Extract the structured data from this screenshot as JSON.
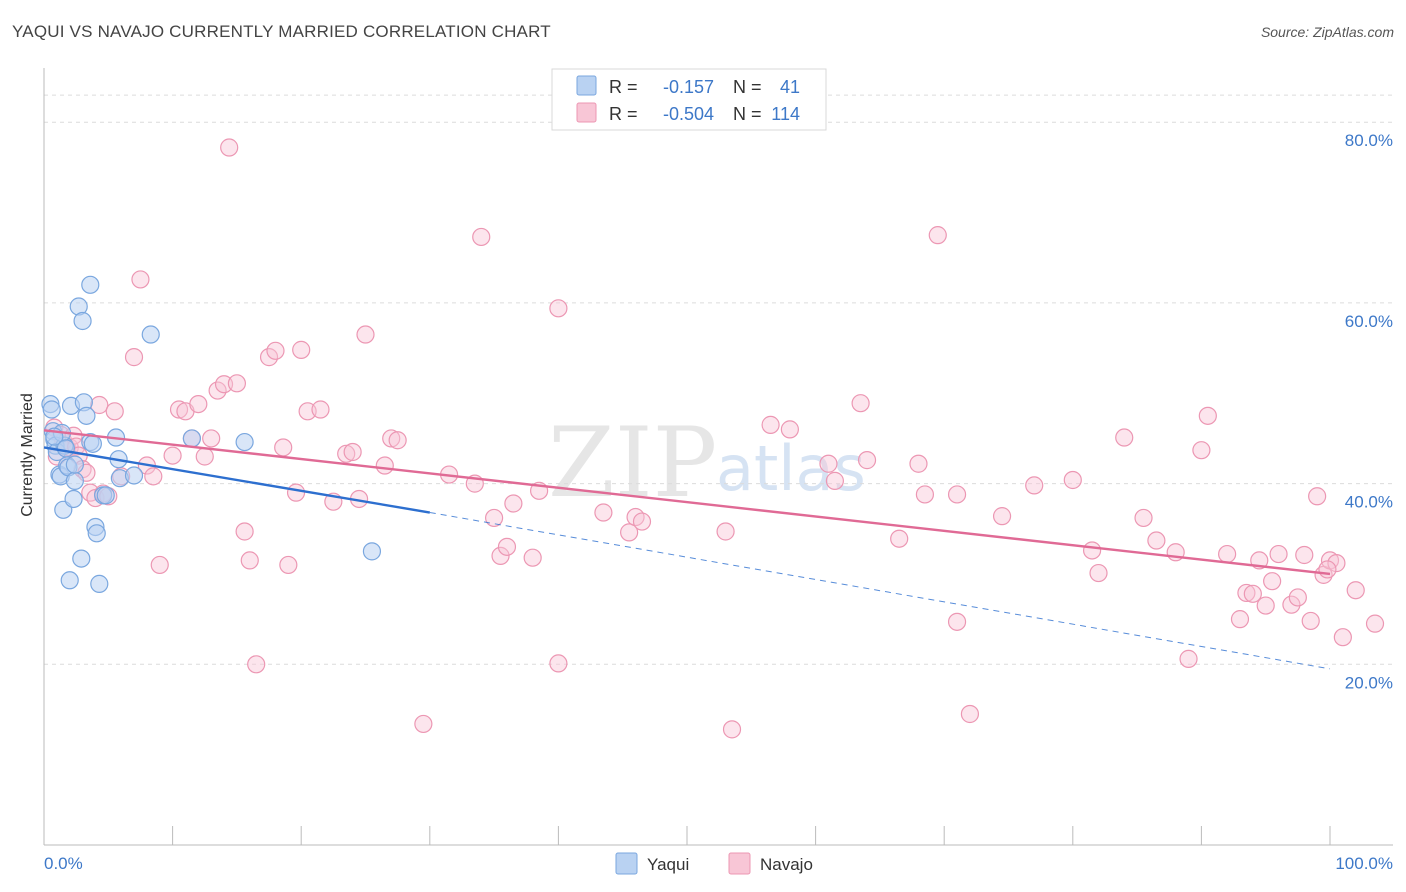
{
  "title": "YAQUI VS NAVAJO CURRENTLY MARRIED CORRELATION CHART",
  "source": "Source: ZipAtlas.com",
  "watermark": {
    "zip": "ZIP",
    "atlas": "atlas"
  },
  "colors": {
    "yaqui_fill": "#b9d2f2",
    "yaqui_stroke": "#7aa7df",
    "yaqui_line": "#2d6fcf",
    "navajo_fill": "#f8c6d6",
    "navajo_stroke": "#ec97b3",
    "navajo_line": "#e06a95",
    "tick_blue": "#3d78c8"
  },
  "legend": {
    "yaqui": {
      "r_label": "R =",
      "r_value": "-0.157",
      "n_label": "N =",
      "n_value": "41"
    },
    "navajo": {
      "r_label": "R =",
      "r_value": "-0.504",
      "n_label": "N =",
      "n_value": "114"
    }
  },
  "chart_data": {
    "type": "scatter",
    "title": "YAQUI VS NAVAJO CURRENTLY MARRIED CORRELATION CHART",
    "xlabel": "",
    "ylabel": "Currently Married",
    "xlim": [
      0,
      100
    ],
    "ylim": [
      0,
      86
    ],
    "x_tick_labels": [
      "0.0%",
      "100.0%"
    ],
    "y_ticks": [
      20,
      40,
      60,
      80
    ],
    "y_tick_labels": [
      "20.0%",
      "40.0%",
      "60.0%",
      "80.0%"
    ],
    "grid": true,
    "legend_position": "top-center",
    "series": [
      {
        "name": "Yaqui",
        "r": -0.157,
        "n": 41,
        "trend": {
          "x": [
            0,
            30
          ],
          "y": [
            44.0,
            36.8
          ]
        },
        "trend_extension": {
          "x": [
            30,
            100
          ],
          "y": [
            36.8,
            19.5
          ]
        },
        "points": [
          [
            0.5,
            48.8
          ],
          [
            0.6,
            48.2
          ],
          [
            0.7,
            45.8
          ],
          [
            0.8,
            44.9
          ],
          [
            0.9,
            44.2
          ],
          [
            1.0,
            43.5
          ],
          [
            1.2,
            41.0
          ],
          [
            1.3,
            40.8
          ],
          [
            1.5,
            37.1
          ],
          [
            1.6,
            44.2
          ],
          [
            1.8,
            42.0
          ],
          [
            1.9,
            41.8
          ],
          [
            2.0,
            29.3
          ],
          [
            2.1,
            48.6
          ],
          [
            2.3,
            38.3
          ],
          [
            2.4,
            40.3
          ],
          [
            2.7,
            59.6
          ],
          [
            2.9,
            31.7
          ],
          [
            3.0,
            58.0
          ],
          [
            3.1,
            49.0
          ],
          [
            3.3,
            47.5
          ],
          [
            3.6,
            44.6
          ],
          [
            3.6,
            62.0
          ],
          [
            4.0,
            35.2
          ],
          [
            4.1,
            34.5
          ],
          [
            4.3,
            28.9
          ],
          [
            4.6,
            38.7
          ],
          [
            4.8,
            38.7
          ],
          [
            5.6,
            45.1
          ],
          [
            5.8,
            42.7
          ],
          [
            5.9,
            40.6
          ],
          [
            7.0,
            40.9
          ],
          [
            8.3,
            56.5
          ],
          [
            11.5,
            45.0
          ],
          [
            15.6,
            44.6
          ],
          [
            25.5,
            32.5
          ],
          [
            1.4,
            45.6
          ],
          [
            0.8,
            45.2
          ],
          [
            1.7,
            43.9
          ],
          [
            2.4,
            42.1
          ],
          [
            3.8,
            44.4
          ]
        ]
      },
      {
        "name": "Navajo",
        "r": -0.504,
        "n": 114,
        "trend": {
          "x": [
            0,
            100
          ],
          "y": [
            45.9,
            30.0
          ]
        },
        "points": [
          [
            0.8,
            46.2
          ],
          [
            1.0,
            43.0
          ],
          [
            1.3,
            45.4
          ],
          [
            1.5,
            44.7
          ],
          [
            1.8,
            43.9
          ],
          [
            2.0,
            44.0
          ],
          [
            2.3,
            45.3
          ],
          [
            2.5,
            44.1
          ],
          [
            2.7,
            43.1
          ],
          [
            3.0,
            41.6
          ],
          [
            3.3,
            41.2
          ],
          [
            3.6,
            39.0
          ],
          [
            4.0,
            38.4
          ],
          [
            4.3,
            48.7
          ],
          [
            4.6,
            38.9
          ],
          [
            5.0,
            38.6
          ],
          [
            5.5,
            48.0
          ],
          [
            6.0,
            40.8
          ],
          [
            7.0,
            54.0
          ],
          [
            7.5,
            62.6
          ],
          [
            8.0,
            42.0
          ],
          [
            8.5,
            40.8
          ],
          [
            9.0,
            31.0
          ],
          [
            10.0,
            43.1
          ],
          [
            10.5,
            48.2
          ],
          [
            11.0,
            48.0
          ],
          [
            11.5,
            45.0
          ],
          [
            12.0,
            48.8
          ],
          [
            12.5,
            43.0
          ],
          [
            13.0,
            45.0
          ],
          [
            13.5,
            50.3
          ],
          [
            14.0,
            51.0
          ],
          [
            14.4,
            77.2
          ],
          [
            15.0,
            51.1
          ],
          [
            15.6,
            34.7
          ],
          [
            16.0,
            31.5
          ],
          [
            16.5,
            20.0
          ],
          [
            17.5,
            54.0
          ],
          [
            18.0,
            54.7
          ],
          [
            18.6,
            44.0
          ],
          [
            19.0,
            31.0
          ],
          [
            19.6,
            39.0
          ],
          [
            20.0,
            54.8
          ],
          [
            20.5,
            48.0
          ],
          [
            21.5,
            48.2
          ],
          [
            22.5,
            38.0
          ],
          [
            23.5,
            43.3
          ],
          [
            24.0,
            43.5
          ],
          [
            24.5,
            38.3
          ],
          [
            25.0,
            56.5
          ],
          [
            26.5,
            42.0
          ],
          [
            27.0,
            45.0
          ],
          [
            27.5,
            44.8
          ],
          [
            29.5,
            13.4
          ],
          [
            31.5,
            41.0
          ],
          [
            33.5,
            40.0
          ],
          [
            34.0,
            67.3
          ],
          [
            35.0,
            36.2
          ],
          [
            35.5,
            32.0
          ],
          [
            36.0,
            33.0
          ],
          [
            36.5,
            37.8
          ],
          [
            38.0,
            31.8
          ],
          [
            38.5,
            39.2
          ],
          [
            40.0,
            20.1
          ],
          [
            40.0,
            59.4
          ],
          [
            43.5,
            36.8
          ],
          [
            45.5,
            34.6
          ],
          [
            46.0,
            36.3
          ],
          [
            46.5,
            35.8
          ],
          [
            53.0,
            34.7
          ],
          [
            53.5,
            12.8
          ],
          [
            56.5,
            46.5
          ],
          [
            58.0,
            46.0
          ],
          [
            61.0,
            42.2
          ],
          [
            61.5,
            40.3
          ],
          [
            63.5,
            48.9
          ],
          [
            64.0,
            42.6
          ],
          [
            66.5,
            33.9
          ],
          [
            68.0,
            42.2
          ],
          [
            68.5,
            38.8
          ],
          [
            69.5,
            67.5
          ],
          [
            71.0,
            38.8
          ],
          [
            71.0,
            24.7
          ],
          [
            72.0,
            14.5
          ],
          [
            74.5,
            36.4
          ],
          [
            77.0,
            39.8
          ],
          [
            80.0,
            40.4
          ],
          [
            81.5,
            32.6
          ],
          [
            82.0,
            30.1
          ],
          [
            84.0,
            45.1
          ],
          [
            85.5,
            36.2
          ],
          [
            86.5,
            33.7
          ],
          [
            88.0,
            32.4
          ],
          [
            89.0,
            20.6
          ],
          [
            90.0,
            43.7
          ],
          [
            90.5,
            47.5
          ],
          [
            92.0,
            32.2
          ],
          [
            93.0,
            25.0
          ],
          [
            93.5,
            27.9
          ],
          [
            94.0,
            27.8
          ],
          [
            94.5,
            31.5
          ],
          [
            95.0,
            26.5
          ],
          [
            95.5,
            29.2
          ],
          [
            96.0,
            32.2
          ],
          [
            97.0,
            26.6
          ],
          [
            97.5,
            27.4
          ],
          [
            98.0,
            32.1
          ],
          [
            98.5,
            24.8
          ],
          [
            99.0,
            38.6
          ],
          [
            99.5,
            29.9
          ],
          [
            100.0,
            31.5
          ],
          [
            100.5,
            31.2
          ],
          [
            101.0,
            23.0
          ],
          [
            102.0,
            28.2
          ],
          [
            99.8,
            30.5
          ],
          [
            103.5,
            24.5
          ]
        ]
      }
    ]
  },
  "bottom_legend": {
    "yaqui_label": "Yaqui",
    "navajo_label": "Navajo"
  }
}
